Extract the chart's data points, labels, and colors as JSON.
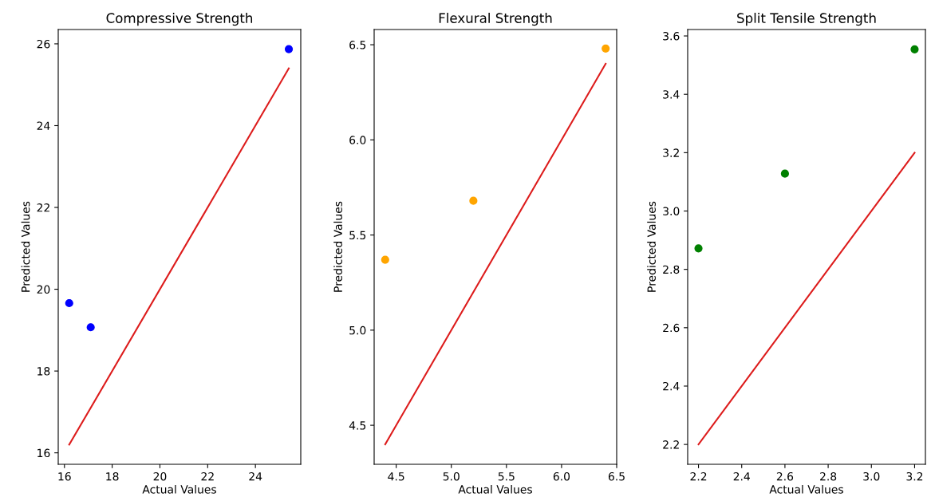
{
  "chart_data": [
    {
      "type": "scatter",
      "title": "Compressive Strength",
      "xlabel": "Actual Values",
      "ylabel": "Predicted Values",
      "series": [
        {
          "color": "#0000ff",
          "marker": "circle",
          "x": [
            16.2,
            17.1,
            25.4
          ],
          "values": [
            19.66,
            19.07,
            25.87
          ]
        },
        {
          "type": "line",
          "color": "#dd1c1c",
          "x": [
            16.2,
            25.4
          ],
          "values": [
            16.2,
            25.4
          ]
        }
      ],
      "xlim": [
        15.74,
        25.9
      ],
      "ylim": [
        15.72,
        26.35
      ],
      "xticks": [
        16,
        18,
        20,
        22,
        24
      ],
      "yticks": [
        16,
        18,
        20,
        22,
        24,
        26
      ]
    },
    {
      "type": "scatter",
      "title": "Flexural Strength",
      "xlabel": "Actual Values",
      "ylabel": "Predicted Values",
      "series": [
        {
          "color": "#ffa500",
          "marker": "circle",
          "x": [
            4.4,
            5.2,
            6.4
          ],
          "values": [
            5.37,
            5.68,
            6.48
          ]
        },
        {
          "type": "line",
          "color": "#dd1c1c",
          "x": [
            4.4,
            6.4
          ],
          "values": [
            4.4,
            6.4
          ]
        }
      ],
      "xlim": [
        4.3,
        6.5
      ],
      "ylim": [
        4.295,
        6.58
      ],
      "xticks": [
        4.5,
        {
          "value": 5,
          "label": "5.0"
        },
        5.5,
        {
          "value": 6,
          "label": "6.0"
        },
        6.5
      ],
      "yticks": [
        4.5,
        {
          "value": 5,
          "label": "5.0"
        },
        5.5,
        {
          "value": 6,
          "label": "6.0"
        },
        6.5
      ]
    },
    {
      "type": "scatter",
      "title": "Split Tensile Strength",
      "xlabel": "Actual Values",
      "ylabel": "Predicted Values",
      "series": [
        {
          "color": "#008000",
          "marker": "circle",
          "x": [
            2.2,
            2.6,
            3.2
          ],
          "values": [
            2.872,
            3.128,
            3.554
          ]
        },
        {
          "type": "line",
          "color": "#dd1c1c",
          "x": [
            2.2,
            3.2
          ],
          "values": [
            2.2,
            3.2
          ]
        }
      ],
      "xlim": [
        2.15,
        3.25
      ],
      "ylim": [
        2.132,
        3.622
      ],
      "xticks": [
        2.2,
        2.4,
        2.6,
        2.8,
        {
          "value": 3,
          "label": "3.0"
        },
        3.2
      ],
      "yticks": [
        2.2,
        2.4,
        2.6,
        2.8,
        {
          "value": 3,
          "label": "3.0"
        },
        3.2,
        3.4,
        3.6
      ]
    }
  ]
}
